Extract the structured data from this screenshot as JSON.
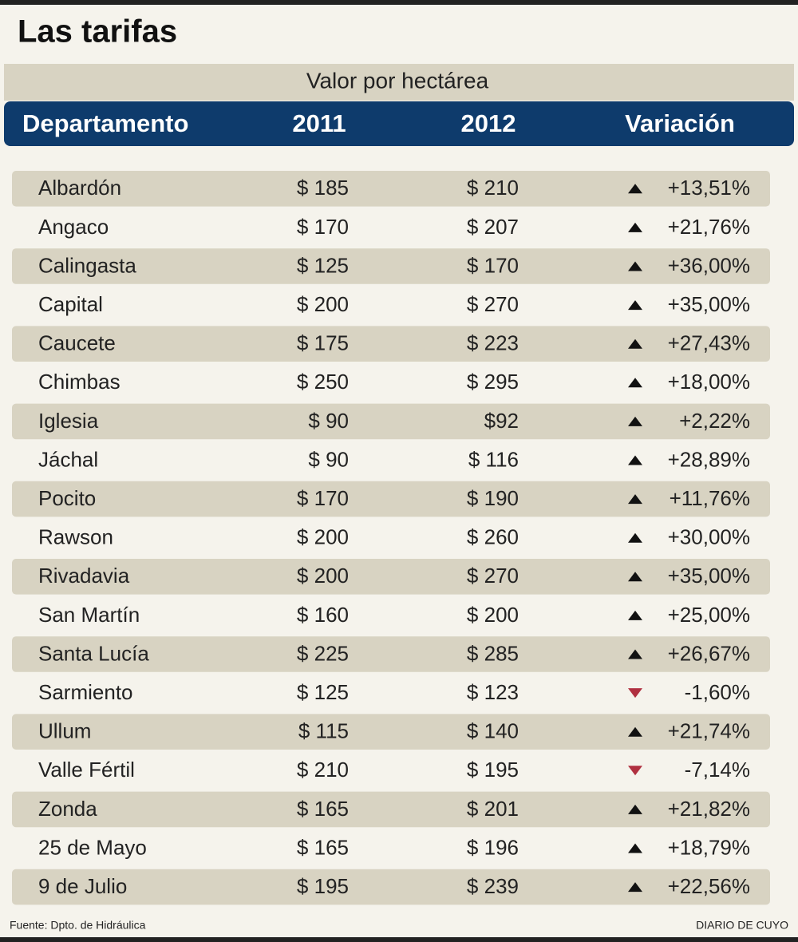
{
  "header": {
    "title": "Las tarifas",
    "subtitle": "Valor por hectárea"
  },
  "table": {
    "columns": [
      "Departamento",
      "2011",
      "2012",
      "Variación"
    ],
    "rows": [
      [
        "Albardón",
        "$ 185",
        "$ 210",
        "+13,51%"
      ],
      [
        "Angaco",
        "$ 170",
        "$ 207",
        "+21,76%"
      ],
      [
        "Calingasta",
        "$ 125",
        "$ 170",
        "+36,00%"
      ],
      [
        "Capital",
        "$ 200",
        "$ 270",
        "+35,00%"
      ],
      [
        "Caucete",
        "$ 175",
        "$ 223",
        "+27,43%"
      ],
      [
        "Chimbas",
        "$ 250",
        "$ 295",
        "+18,00%"
      ],
      [
        "Iglesia",
        "$ 90",
        "$92",
        "+2,22%"
      ],
      [
        "Jáchal",
        "$ 90",
        "$ 116",
        "+28,89%"
      ],
      [
        "Pocito",
        "$ 170",
        "$ 190",
        "+11,76%"
      ],
      [
        "Rawson",
        "$ 200",
        "$ 260",
        "+30,00%"
      ],
      [
        "Rivadavia",
        "$ 200",
        "$ 270",
        "+35,00%"
      ],
      [
        "San Martín",
        "$ 160",
        "$ 200",
        "+25,00%"
      ],
      [
        "Santa Lucía",
        "$ 225",
        "$ 285",
        "+26,67%"
      ],
      [
        "Sarmiento",
        "$ 125",
        "$ 123",
        "-1,60%"
      ],
      [
        "Ullum",
        "$ 115",
        "$ 140",
        "+21,74%"
      ],
      [
        "Valle Fértil",
        "$ 210",
        "$ 195",
        "-7,14%"
      ],
      [
        "Zonda",
        "$ 165",
        "$ 201",
        "+21,82%"
      ],
      [
        "25 de Mayo",
        "$ 165",
        "$ 196",
        "+18,79%"
      ],
      [
        "9 de Julio",
        "$ 195",
        "$ 239",
        "+22,56%"
      ]
    ]
  },
  "footer": {
    "source": "Fuente: Dpto. de Hidráulica",
    "credit": "DIARIO DE CUYO"
  }
}
